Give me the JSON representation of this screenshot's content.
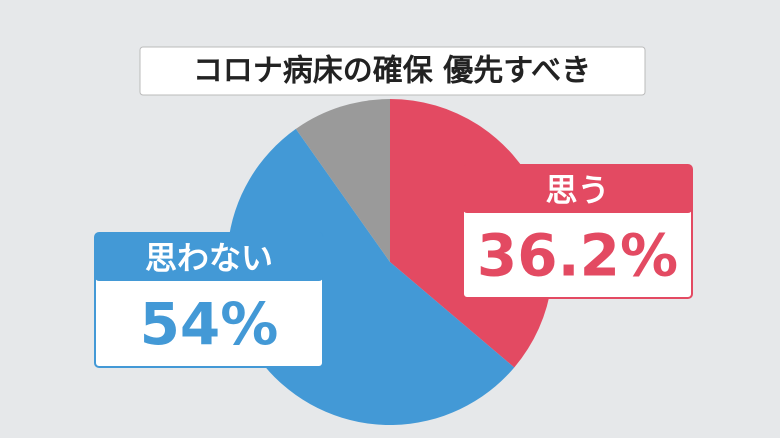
{
  "chart_data": {
    "type": "pie",
    "title": "コロナ病床の確保 優先すべき",
    "categories": [
      "思う",
      "思わない",
      null
    ],
    "values": [
      36.2,
      54,
      9.8
    ],
    "value_labels": [
      "36.2%",
      "54%",
      null
    ],
    "colors": [
      "#e34a62",
      "#4399d6",
      "#9a9a9a"
    ]
  }
}
